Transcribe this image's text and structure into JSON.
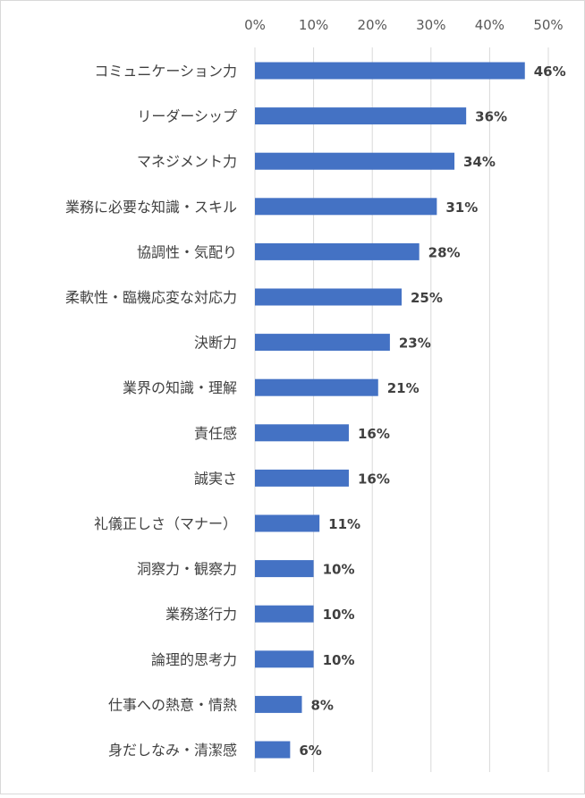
{
  "chart_data": {
    "type": "bar",
    "orientation": "horizontal",
    "title": "",
    "xlabel": "",
    "ylabel": "",
    "xlim": [
      0,
      50
    ],
    "x_ticks": [
      0,
      10,
      20,
      30,
      40,
      50
    ],
    "tick_labels": [
      "0%",
      "10%",
      "20%",
      "30%",
      "40%",
      "50%"
    ],
    "x_axis_position": "top",
    "grid": true,
    "legend": "none",
    "bar_color": "#4472C4",
    "grid_color": "#d9d9d9",
    "categories": [
      "コミュニケーション力",
      "リーダーシップ",
      "マネジメント力",
      "業務に必要な知識・スキル",
      "協調性・気配り",
      "柔軟性・臨機応変な対応力",
      "決断力",
      "業界の知識・理解",
      "責任感",
      "誠実さ",
      "礼儀正しさ（マナー）",
      "洞察力・観察力",
      "業務遂行力",
      "論理的思考力",
      "仕事への熱意・情熱",
      "身だしなみ・清潔感"
    ],
    "values": [
      46,
      36,
      34,
      31,
      28,
      25,
      23,
      21,
      16,
      16,
      11,
      10,
      10,
      10,
      8,
      6
    ],
    "data_labels": [
      "46%",
      "36%",
      "34%",
      "31%",
      "28%",
      "25%",
      "23%",
      "21%",
      "16%",
      "16%",
      "11%",
      "10%",
      "10%",
      "10%",
      "8%",
      "6%"
    ]
  }
}
